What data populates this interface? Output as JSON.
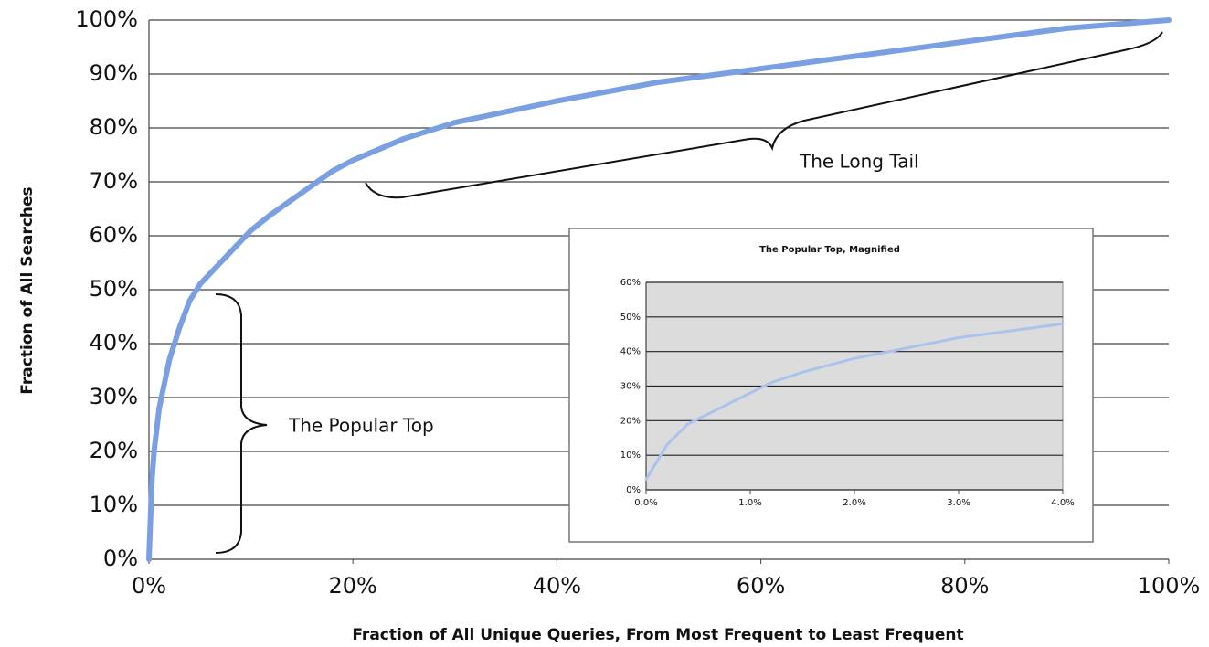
{
  "chart_data": [
    {
      "type": "line",
      "x_label": "Fraction of All Unique Queries, From Most Frequent to Least Frequent",
      "y_label": "Fraction of All Searches",
      "annotations": [
        "The Long Tail",
        "The Popular Top"
      ],
      "x": [
        0,
        0.3,
        0.5,
        1,
        2,
        3,
        4,
        5,
        7,
        10,
        12,
        15,
        18,
        20,
        25,
        30,
        35,
        40,
        50,
        60,
        70,
        80,
        90,
        100
      ],
      "values": [
        0,
        15,
        20,
        28,
        37,
        43,
        48,
        51,
        55,
        61,
        64,
        68,
        72,
        74,
        78,
        81,
        83,
        85,
        88.5,
        91,
        93.5,
        96,
        98.5,
        100
      ],
      "color": "#7ba0e2",
      "xlim": [
        0,
        100
      ],
      "ylim": [
        0,
        100
      ],
      "xticks": [
        {
          "value": 0,
          "label": "0%"
        },
        {
          "value": 20,
          "label": "20%"
        },
        {
          "value": 40,
          "label": "40%"
        },
        {
          "value": 60,
          "label": "60%"
        },
        {
          "value": 80,
          "label": "80%"
        },
        {
          "value": 100,
          "label": "100%"
        }
      ],
      "yticks": [
        {
          "value": 0,
          "label": "0%"
        },
        {
          "value": 10,
          "label": "10%"
        },
        {
          "value": 20,
          "label": "20%"
        },
        {
          "value": 30,
          "label": "30%"
        },
        {
          "value": 40,
          "label": "40%"
        },
        {
          "value": 50,
          "label": "50%"
        },
        {
          "value": 60,
          "label": "60%"
        },
        {
          "value": 70,
          "label": "70%"
        },
        {
          "value": 80,
          "label": "80%"
        },
        {
          "value": 90,
          "label": "90%"
        },
        {
          "value": 100,
          "label": "100%"
        }
      ],
      "grid": true
    },
    {
      "type": "line",
      "title": "The Popular Top, Magnified",
      "x": [
        0,
        0.1,
        0.2,
        0.4,
        0.6,
        0.8,
        1.0,
        1.2,
        1.5,
        2.0,
        2.5,
        3.0,
        3.5,
        4.0
      ],
      "values": [
        3,
        8,
        13,
        19,
        22,
        25,
        28,
        31,
        34,
        38,
        41,
        44,
        46,
        48
      ],
      "color": "#a9c3ee",
      "xlim": [
        0,
        4
      ],
      "ylim": [
        0,
        60
      ],
      "xticks": [
        {
          "value": 0,
          "label": "0.0%"
        },
        {
          "value": 1,
          "label": "1.0%"
        },
        {
          "value": 2,
          "label": "2.0%"
        },
        {
          "value": 3,
          "label": "3.0%"
        },
        {
          "value": 4,
          "label": "4.0%"
        }
      ],
      "yticks": [
        {
          "value": 0,
          "label": "0%"
        },
        {
          "value": 10,
          "label": "10%"
        },
        {
          "value": 20,
          "label": "20%"
        },
        {
          "value": 30,
          "label": "30%"
        },
        {
          "value": 40,
          "label": "40%"
        },
        {
          "value": 50,
          "label": "50%"
        },
        {
          "value": 60,
          "label": "60%"
        }
      ],
      "grid": true
    }
  ]
}
